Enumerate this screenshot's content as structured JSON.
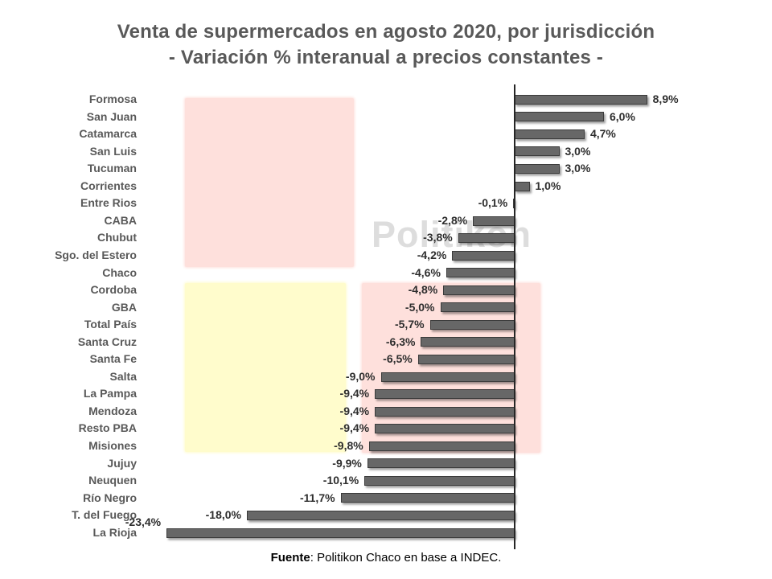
{
  "page": {
    "title_line1": "Venta de supermercados en agosto 2020, por jurisdicción",
    "title_line2": "- Variación % interanual a precios constantes -"
  },
  "watermark": "Politikon",
  "footer": {
    "label": "Fuente",
    "text": ": Politikon Chaco en base a INDEC."
  },
  "colors": {
    "title": "#595959",
    "category_label": "#595959",
    "value_label": "#2e2e2e",
    "bar_fill": "#676767",
    "bar_border": "#3b3b3b",
    "axis": "#262626",
    "highlight_pink": "#fee0dc",
    "highlight_yellow": "#fffccc",
    "watermark": "#c3c3c3"
  },
  "chart_data": {
    "type": "bar",
    "orientation": "horizontal",
    "title": "Venta de supermercados en agosto 2020, por jurisdicción - Variación % interanual a precios constantes -",
    "unit": "%",
    "xlim": [
      -23.4,
      8.9
    ],
    "grid": false,
    "legend": false,
    "categories": [
      "Formosa",
      "San Juan",
      "Catamarca",
      "San Luis",
      "Tucuman",
      "Corrientes",
      "Entre Rios",
      "CABA",
      "Chubut",
      "Sgo. del Estero",
      "Chaco",
      "Cordoba",
      "GBA",
      "Total País",
      "Santa Cruz",
      "Santa Fe",
      "Salta",
      "La Pampa",
      "Mendoza",
      "Resto PBA",
      "Misiones",
      "Jujuy",
      "Neuquen",
      "Río Negro",
      "T. del Fuego",
      "La Rioja"
    ],
    "values": [
      8.9,
      6.0,
      4.7,
      3.0,
      3.0,
      1.0,
      -0.1,
      -2.8,
      -3.8,
      -4.2,
      -4.6,
      -4.8,
      -5.0,
      -5.7,
      -6.3,
      -6.5,
      -9.0,
      -9.4,
      -9.4,
      -9.4,
      -9.8,
      -9.9,
      -10.1,
      -11.7,
      -18.0,
      -23.4
    ],
    "value_labels": [
      "8,9%",
      "6,0%",
      "4,7%",
      "3,0%",
      "3,0%",
      "1,0%",
      "-0,1%",
      "-2,8%",
      "-3,8%",
      "-4,2%",
      "-4,6%",
      "-4,8%",
      "-5,0%",
      "-5,7%",
      "-6,3%",
      "-6,5%",
      "-9,0%",
      "-9,4%",
      "-9,4%",
      "-9,4%",
      "-9,8%",
      "-9,9%",
      "-10,1%",
      "-11,7%",
      "-18,0%",
      "-23,4%"
    ],
    "highlight_zones": [
      {
        "name": "pink-top-left",
        "color": "#fee0dc",
        "rows_covered": "Formosa a Sgo. del Estero"
      },
      {
        "name": "yellow-mid-left",
        "color": "#fffccc",
        "rows_covered": "Cordoba a Misiones"
      },
      {
        "name": "pink-mid-right",
        "color": "#fee0dc",
        "rows_covered": "Cordoba a Misiones"
      }
    ],
    "source": "Fuente: Politikon Chaco en base a INDEC."
  }
}
